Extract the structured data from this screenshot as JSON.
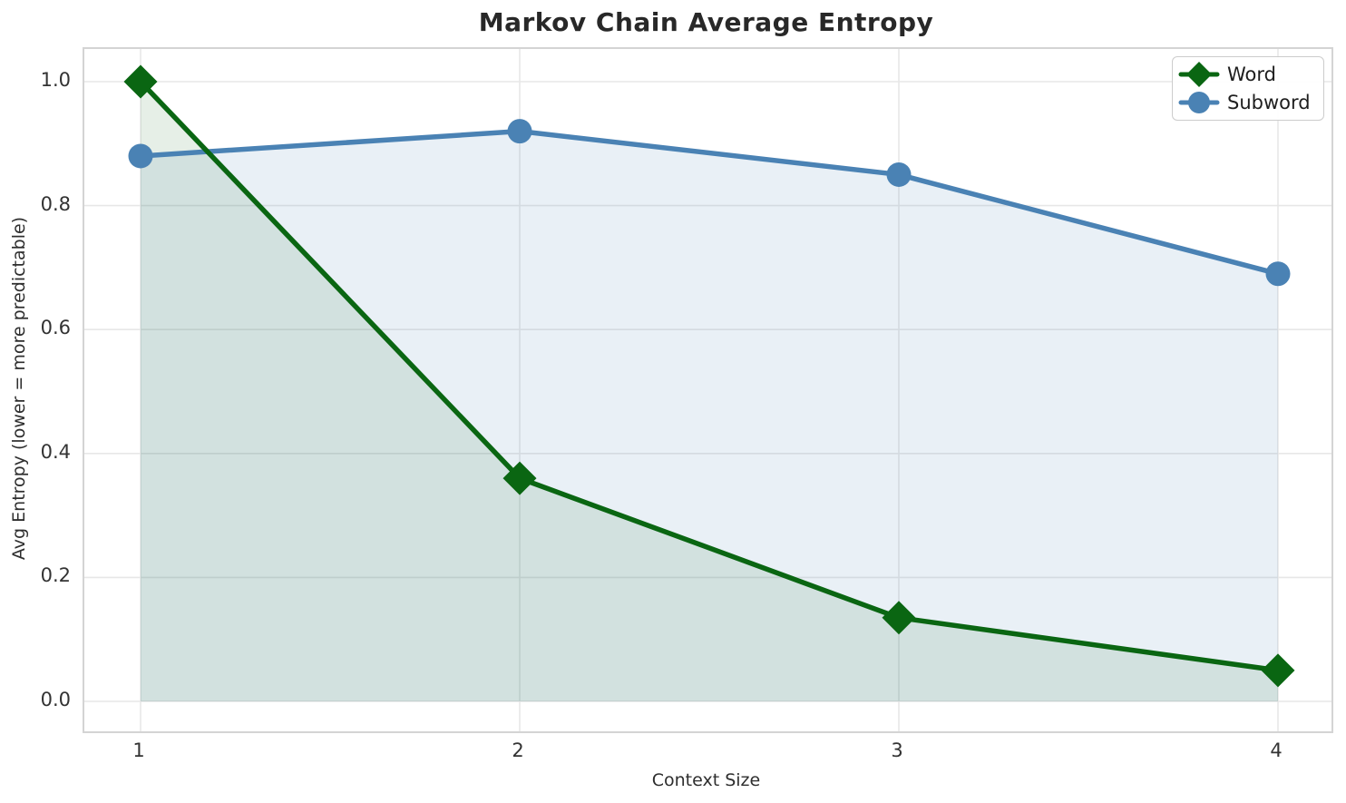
{
  "title": "Markov Chain Average Entropy",
  "chart_data": {
    "type": "line",
    "title": "Markov Chain Average Entropy",
    "xlabel": "Context Size",
    "ylabel": "Avg Entropy (lower = more predictable)",
    "x": [
      1,
      2,
      3,
      4
    ],
    "x_ticks": [
      "1",
      "2",
      "3",
      "4"
    ],
    "y_ticks": [
      "0.0",
      "0.2",
      "0.4",
      "0.6",
      "0.8",
      "1.0"
    ],
    "y_tick_values": [
      0.0,
      0.2,
      0.4,
      0.6,
      0.8,
      1.0
    ],
    "ylim": [
      0.0,
      1.0
    ],
    "grid": true,
    "legend_position": "upper right",
    "series": [
      {
        "name": "Word",
        "values": [
          1.0,
          0.36,
          0.135,
          0.05
        ],
        "color": "#0a6612",
        "marker": "diamond",
        "area_fill": true,
        "fill_opacity": 0.1
      },
      {
        "name": "Subword",
        "values": [
          0.88,
          0.92,
          0.85,
          0.69
        ],
        "color": "#4a82b4",
        "marker": "circle",
        "area_fill": true,
        "fill_opacity": 0.12
      }
    ]
  },
  "colors": {
    "grid": "#e7e7e7",
    "spine": "#d4d4d4",
    "title_text": "#282828",
    "tick_text": "#333333"
  }
}
